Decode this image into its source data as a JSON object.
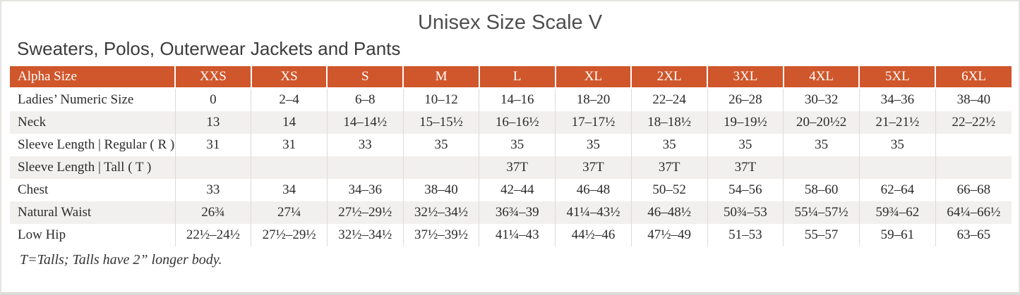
{
  "page": {
    "title": "Unisex Size Scale V",
    "subtitle": "Sweaters, Polos, Outerwear Jackets and Pants",
    "footnote": "T=Talls; Talls have 2” longer body."
  },
  "colors": {
    "header_bg": "#d0562c",
    "header_text": "#ffffff",
    "stripe_bg": "#f2f0ee",
    "cell_border": "#dedad6",
    "body_text": "#2b2b2b",
    "title_text": "#4e4e4e",
    "frame_border": "#e6e4e2"
  },
  "table": {
    "columns": [
      "Alpha Size",
      "XXS",
      "XS",
      "S",
      "M",
      "L",
      "XL",
      "2XL",
      "3XL",
      "4XL",
      "5XL",
      "6XL"
    ],
    "rows": [
      {
        "label": "Ladies’ Numeric Size",
        "values": [
          "0",
          "2–4",
          "6–8",
          "10–12",
          "14–16",
          "18–20",
          "22–24",
          "26–28",
          "30–32",
          "34–36",
          "38–40"
        ]
      },
      {
        "label": "Neck",
        "values": [
          "13",
          "14",
          "14–14½",
          "15–15½",
          "16–16½",
          "17–17½",
          "18–18½",
          "19–19½",
          "20–20½2",
          "21–21½",
          "22–22½"
        ]
      },
      {
        "label": "Sleeve Length | Regular ( R )",
        "values": [
          "31",
          "31",
          "33",
          "35",
          "35",
          "35",
          "35",
          "35",
          "35",
          "35",
          ""
        ]
      },
      {
        "label": "Sleeve Length | Tall ( T )",
        "values": [
          "",
          "",
          "",
          "",
          "37T",
          "37T",
          "37T",
          "37T",
          "",
          "",
          ""
        ]
      },
      {
        "label": "Chest",
        "values": [
          "33",
          "34",
          "34–36",
          "38–40",
          "42–44",
          "46–48",
          "50–52",
          "54–56",
          "58–60",
          "62–64",
          "66–68"
        ]
      },
      {
        "label": "Natural Waist",
        "values": [
          "26¾",
          "27¼",
          "27½–29½",
          "32½–34½",
          "36¾–39",
          "41¼–43½",
          "46–48½",
          "50¾–53",
          "55¼–57½",
          "59¾–62",
          "64¼–66½"
        ]
      },
      {
        "label": "Low Hip",
        "values": [
          "22½–24½",
          "27½–29½",
          "32½–34½",
          "37½–39½",
          "41¼–43",
          "44½–46",
          "47½–49",
          "51–53",
          "55–57",
          "59–61",
          "63–65"
        ]
      }
    ]
  }
}
